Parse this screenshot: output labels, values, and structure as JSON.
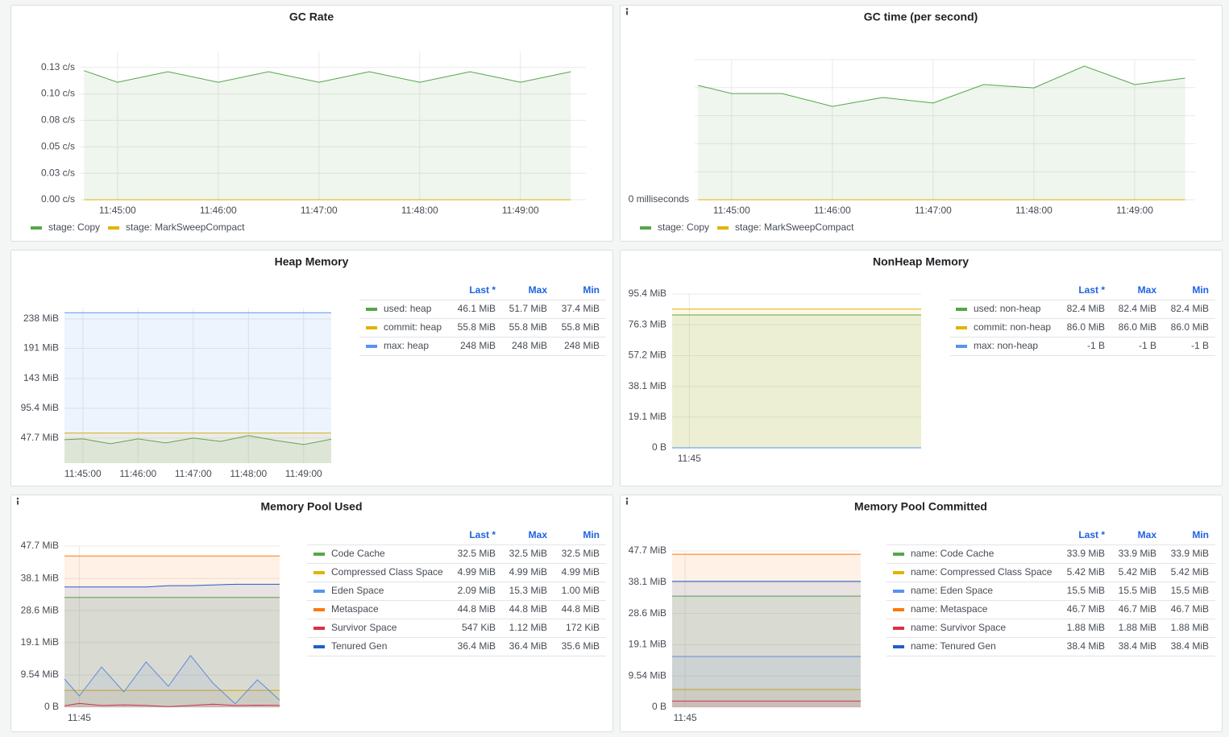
{
  "chart_data": [
    {
      "type": "line",
      "title": "GC Rate",
      "x": [
        "11:44:40",
        "11:45:00",
        "11:45:30",
        "11:46:00",
        "11:46:30",
        "11:47:00",
        "11:47:30",
        "11:48:00",
        "11:48:30",
        "11:49:00",
        "11:49:30"
      ],
      "xlim": [
        "11:44:38",
        "11:49:39"
      ],
      "xticks": [
        "11:45:00",
        "11:46:00",
        "11:47:00",
        "11:48:00",
        "11:49:00"
      ],
      "ylim": [
        0,
        0.14
      ],
      "yticks": [
        {
          "value": 0,
          "label": "0.00 c/s"
        },
        {
          "value": 0.025,
          "label": "0.03 c/s"
        },
        {
          "value": 0.05,
          "label": "0.05 c/s"
        },
        {
          "value": 0.075,
          "label": "0.08 c/s"
        },
        {
          "value": 0.1,
          "label": "0.10 c/s"
        },
        {
          "value": 0.125,
          "label": "0.13 c/s"
        }
      ],
      "grid": true,
      "legend": "bottom",
      "series": [
        {
          "name": "stage: Copy",
          "color": "#56a64b",
          "values": [
            0.122,
            0.111,
            0.121,
            0.111,
            0.121,
            0.111,
            0.121,
            0.111,
            0.121,
            0.111,
            0.121
          ]
        },
        {
          "name": "stage: MarkSweepCompact",
          "color": "#e0b400",
          "values": [
            0,
            0,
            0,
            0,
            0,
            0,
            0,
            0,
            0,
            0,
            0
          ]
        }
      ]
    },
    {
      "type": "line",
      "title": "GC time (per second)",
      "x": [
        "11:44:40",
        "11:45:00",
        "11:45:30",
        "11:46:00",
        "11:46:30",
        "11:47:00",
        "11:47:30",
        "11:48:00",
        "11:48:30",
        "11:49:00",
        "11:49:30"
      ],
      "xlim": [
        "11:44:38",
        "11:49:36"
      ],
      "xticks": [
        "11:45:00",
        "11:46:00",
        "11:47:00",
        "11:48:00",
        "11:49:00"
      ],
      "ylim": [
        0,
        5
      ],
      "yticks": [
        {
          "value": 0,
          "label": "0 milliseconds"
        }
      ],
      "ygrid": [
        0,
        1,
        2,
        3,
        4,
        5
      ],
      "grid": true,
      "legend": "bottom",
      "series": [
        {
          "name": "stage: Copy",
          "color": "#56a64b",
          "values": [
            4.08,
            3.79,
            3.79,
            3.33,
            3.65,
            3.45,
            4.11,
            3.99,
            4.77,
            4.11,
            4.34
          ]
        },
        {
          "name": "stage: MarkSweepCompact",
          "color": "#e0b400",
          "values": [
            0,
            0,
            0,
            0,
            0,
            0,
            0,
            0,
            0,
            0,
            0
          ]
        }
      ]
    },
    {
      "type": "line",
      "title": "Heap Memory",
      "x": [
        "11:44:40",
        "11:45:00",
        "11:45:30",
        "11:46:00",
        "11:46:30",
        "11:47:00",
        "11:47:30",
        "11:48:00",
        "11:48:30",
        "11:49:00",
        "11:49:30"
      ],
      "xlim": [
        "11:44:40",
        "11:49:30"
      ],
      "xticks": [
        "11:45:00",
        "11:46:00",
        "11:47:00",
        "11:48:00",
        "11:49:00"
      ],
      "ylim": [
        7.7,
        256
      ],
      "yticks": [
        {
          "value": 47.7,
          "label": "47.7 MiB"
        },
        {
          "value": 95.4,
          "label": "95.4 MiB"
        },
        {
          "value": 143,
          "label": "143 MiB"
        },
        {
          "value": 191,
          "label": "191 MiB"
        },
        {
          "value": 238,
          "label": "238 MiB"
        }
      ],
      "grid": true,
      "legend": "right",
      "legend_columns": [
        "Last *",
        "Max",
        "Min"
      ],
      "series": [
        {
          "name": "used: heap",
          "color": "#56a64b",
          "values": [
            45.1,
            46.4,
            38.7,
            46.4,
            40.0,
            47.7,
            42.5,
            51.7,
            43.8,
            37.4,
            46.1
          ],
          "legend_values": [
            "46.1 MiB",
            "51.7 MiB",
            "37.4 MiB"
          ]
        },
        {
          "name": "commit: heap",
          "color": "#e0b400",
          "values": [
            55.8,
            55.8,
            55.8,
            55.8,
            55.8,
            55.8,
            55.8,
            55.8,
            55.8,
            55.8,
            55.8
          ],
          "legend_values": [
            "55.8 MiB",
            "55.8 MiB",
            "55.8 MiB"
          ]
        },
        {
          "name": "max: heap",
          "color": "#5794f2",
          "values": [
            248,
            248,
            248,
            248,
            248,
            248,
            248,
            248,
            248,
            248,
            248
          ],
          "legend_values": [
            "248 MiB",
            "248 MiB",
            "248 MiB"
          ]
        }
      ]
    },
    {
      "type": "line",
      "title": "NonHeap Memory",
      "x": [
        "11:44:40",
        "11:45:00",
        "11:45:30",
        "11:46:00",
        "11:46:30",
        "11:47:00",
        "11:47:30",
        "11:48:00",
        "11:48:30",
        "11:49:00",
        "11:49:30"
      ],
      "xlim": [
        "11:44:40",
        "11:49:30"
      ],
      "xticks": [
        "11:45"
      ],
      "ylim": [
        0,
        95.4
      ],
      "yticks": [
        {
          "value": 0,
          "label": "0 B"
        },
        {
          "value": 19.1,
          "label": "19.1 MiB"
        },
        {
          "value": 38.1,
          "label": "38.1 MiB"
        },
        {
          "value": 57.2,
          "label": "57.2 MiB"
        },
        {
          "value": 76.3,
          "label": "76.3 MiB"
        },
        {
          "value": 95.4,
          "label": "95.4 MiB"
        }
      ],
      "grid": true,
      "legend": "right",
      "legend_columns": [
        "Last *",
        "Max",
        "Min"
      ],
      "series": [
        {
          "name": "used: non-heap",
          "color": "#56a64b",
          "values": [
            82.4,
            82.4,
            82.4,
            82.4,
            82.4,
            82.4,
            82.4,
            82.4,
            82.4,
            82.4,
            82.4
          ],
          "legend_values": [
            "82.4 MiB",
            "82.4 MiB",
            "82.4 MiB"
          ]
        },
        {
          "name": "commit: non-heap",
          "color": "#e0b400",
          "values": [
            86.0,
            86.0,
            86.0,
            86.0,
            86.0,
            86.0,
            86.0,
            86.0,
            86.0,
            86.0,
            86.0
          ],
          "legend_values": [
            "86.0 MiB",
            "86.0 MiB",
            "86.0 MiB"
          ]
        },
        {
          "name": "max: non-heap",
          "color": "#5794f2",
          "values": [
            -9.5e-07,
            -9.5e-07,
            -9.5e-07,
            -9.5e-07,
            -9.5e-07,
            -9.5e-07,
            -9.5e-07,
            -9.5e-07,
            -9.5e-07,
            -9.5e-07,
            -9.5e-07
          ],
          "legend_values": [
            "-1 B",
            "-1 B",
            "-1 B"
          ]
        }
      ]
    },
    {
      "type": "line",
      "title": "Memory Pool Used",
      "x": [
        "11:44:40",
        "11:45:00",
        "11:45:30",
        "11:46:00",
        "11:46:30",
        "11:47:00",
        "11:47:30",
        "11:48:00",
        "11:48:30",
        "11:49:00",
        "11:49:30"
      ],
      "xlim": [
        "11:44:40",
        "11:49:30"
      ],
      "xticks": [
        "11:45"
      ],
      "ylim": [
        0,
        47.7
      ],
      "yticks": [
        {
          "value": 0,
          "label": "0 B"
        },
        {
          "value": 9.54,
          "label": "9.54 MiB"
        },
        {
          "value": 19.1,
          "label": "19.1 MiB"
        },
        {
          "value": 28.6,
          "label": "28.6 MiB"
        },
        {
          "value": 38.1,
          "label": "38.1 MiB"
        },
        {
          "value": 47.7,
          "label": "47.7 MiB"
        }
      ],
      "grid": true,
      "legend": "right",
      "legend_columns": [
        "Last *",
        "Max",
        "Min"
      ],
      "series": [
        {
          "name": "Code Cache",
          "color": "#56a64b",
          "values": [
            32.5,
            32.5,
            32.5,
            32.5,
            32.5,
            32.5,
            32.5,
            32.5,
            32.5,
            32.5,
            32.5
          ],
          "legend_values": [
            "32.5 MiB",
            "32.5 MiB",
            "32.5 MiB"
          ]
        },
        {
          "name": "Compressed Class Space",
          "color": "#e0b400",
          "values": [
            4.99,
            4.99,
            4.99,
            4.99,
            4.99,
            4.99,
            4.99,
            4.99,
            4.99,
            4.99,
            4.99
          ],
          "legend_values": [
            "4.99 MiB",
            "4.99 MiB",
            "4.99 MiB"
          ]
        },
        {
          "name": "Eden Space",
          "color": "#5794f2",
          "values": [
            8.35,
            3.34,
            11.9,
            4.53,
            13.4,
            6.2,
            15.3,
            7.15,
            1.0,
            8.1,
            2.09
          ],
          "legend_values": [
            "2.09 MiB",
            "15.3 MiB",
            "1.00 MiB"
          ]
        },
        {
          "name": "Metaspace",
          "color": "#ff780a",
          "values": [
            44.8,
            44.8,
            44.8,
            44.8,
            44.8,
            44.8,
            44.8,
            44.8,
            44.8,
            44.8,
            44.8
          ],
          "legend_values": [
            "44.8 MiB",
            "44.8 MiB",
            "44.8 MiB"
          ]
        },
        {
          "name": "Survivor Space",
          "color": "#e02f44",
          "values": [
            0.4,
            1.12,
            0.5,
            0.7,
            0.5,
            0.168,
            0.5,
            0.9,
            0.5,
            0.6,
            0.534
          ],
          "legend_values": [
            "547 KiB",
            "1.12 MiB",
            "172 KiB"
          ]
        },
        {
          "name": "Tenured Gen",
          "color": "#1f60c4",
          "values": [
            35.6,
            35.6,
            35.6,
            35.6,
            35.6,
            36.0,
            36.0,
            36.2,
            36.4,
            36.4,
            36.4
          ],
          "legend_values": [
            "36.4 MiB",
            "36.4 MiB",
            "35.6 MiB"
          ]
        }
      ]
    },
    {
      "type": "line",
      "title": "Memory Pool Committed",
      "x": [
        "11:44:40",
        "11:45:00",
        "11:45:30",
        "11:46:00",
        "11:46:30",
        "11:47:00",
        "11:47:30",
        "11:48:00",
        "11:48:30",
        "11:49:00",
        "11:49:30"
      ],
      "xlim": [
        "11:44:40",
        "11:49:30"
      ],
      "xticks": [
        "11:45"
      ],
      "ylim": [
        0,
        47.7
      ],
      "yticks": [
        {
          "value": 0,
          "label": "0 B"
        },
        {
          "value": 9.54,
          "label": "9.54 MiB"
        },
        {
          "value": 19.1,
          "label": "19.1 MiB"
        },
        {
          "value": 28.6,
          "label": "28.6 MiB"
        },
        {
          "value": 38.1,
          "label": "38.1 MiB"
        },
        {
          "value": 47.7,
          "label": "47.7 MiB"
        }
      ],
      "grid": true,
      "legend": "right",
      "legend_columns": [
        "Last *",
        "Max",
        "Min"
      ],
      "series": [
        {
          "name": "name: Code Cache",
          "color": "#56a64b",
          "values": [
            33.9,
            33.9,
            33.9,
            33.9,
            33.9,
            33.9,
            33.9,
            33.9,
            33.9,
            33.9,
            33.9
          ],
          "legend_values": [
            "33.9 MiB",
            "33.9 MiB",
            "33.9 MiB"
          ]
        },
        {
          "name": "name: Compressed Class Space",
          "color": "#e0b400",
          "values": [
            5.42,
            5.42,
            5.42,
            5.42,
            5.42,
            5.42,
            5.42,
            5.42,
            5.42,
            5.42,
            5.42
          ],
          "legend_values": [
            "5.42 MiB",
            "5.42 MiB",
            "5.42 MiB"
          ]
        },
        {
          "name": "name: Eden Space",
          "color": "#5794f2",
          "values": [
            15.5,
            15.5,
            15.5,
            15.5,
            15.5,
            15.5,
            15.5,
            15.5,
            15.5,
            15.5,
            15.5
          ],
          "legend_values": [
            "15.5 MiB",
            "15.5 MiB",
            "15.5 MiB"
          ]
        },
        {
          "name": "name: Metaspace",
          "color": "#ff780a",
          "values": [
            46.7,
            46.7,
            46.7,
            46.7,
            46.7,
            46.7,
            46.7,
            46.7,
            46.7,
            46.7,
            46.7
          ],
          "legend_values": [
            "46.7 MiB",
            "46.7 MiB",
            "46.7 MiB"
          ]
        },
        {
          "name": "name: Survivor Space",
          "color": "#e02f44",
          "values": [
            1.88,
            1.88,
            1.88,
            1.88,
            1.88,
            1.88,
            1.88,
            1.88,
            1.88,
            1.88,
            1.88
          ],
          "legend_values": [
            "1.88 MiB",
            "1.88 MiB",
            "1.88 MiB"
          ]
        },
        {
          "name": "name: Tenured Gen",
          "color": "#1f60c4",
          "values": [
            38.4,
            38.4,
            38.4,
            38.4,
            38.4,
            38.4,
            38.4,
            38.4,
            38.4,
            38.4,
            38.4
          ],
          "legend_values": [
            "38.4 MiB",
            "38.4 MiB",
            "38.4 MiB"
          ]
        }
      ]
    }
  ]
}
